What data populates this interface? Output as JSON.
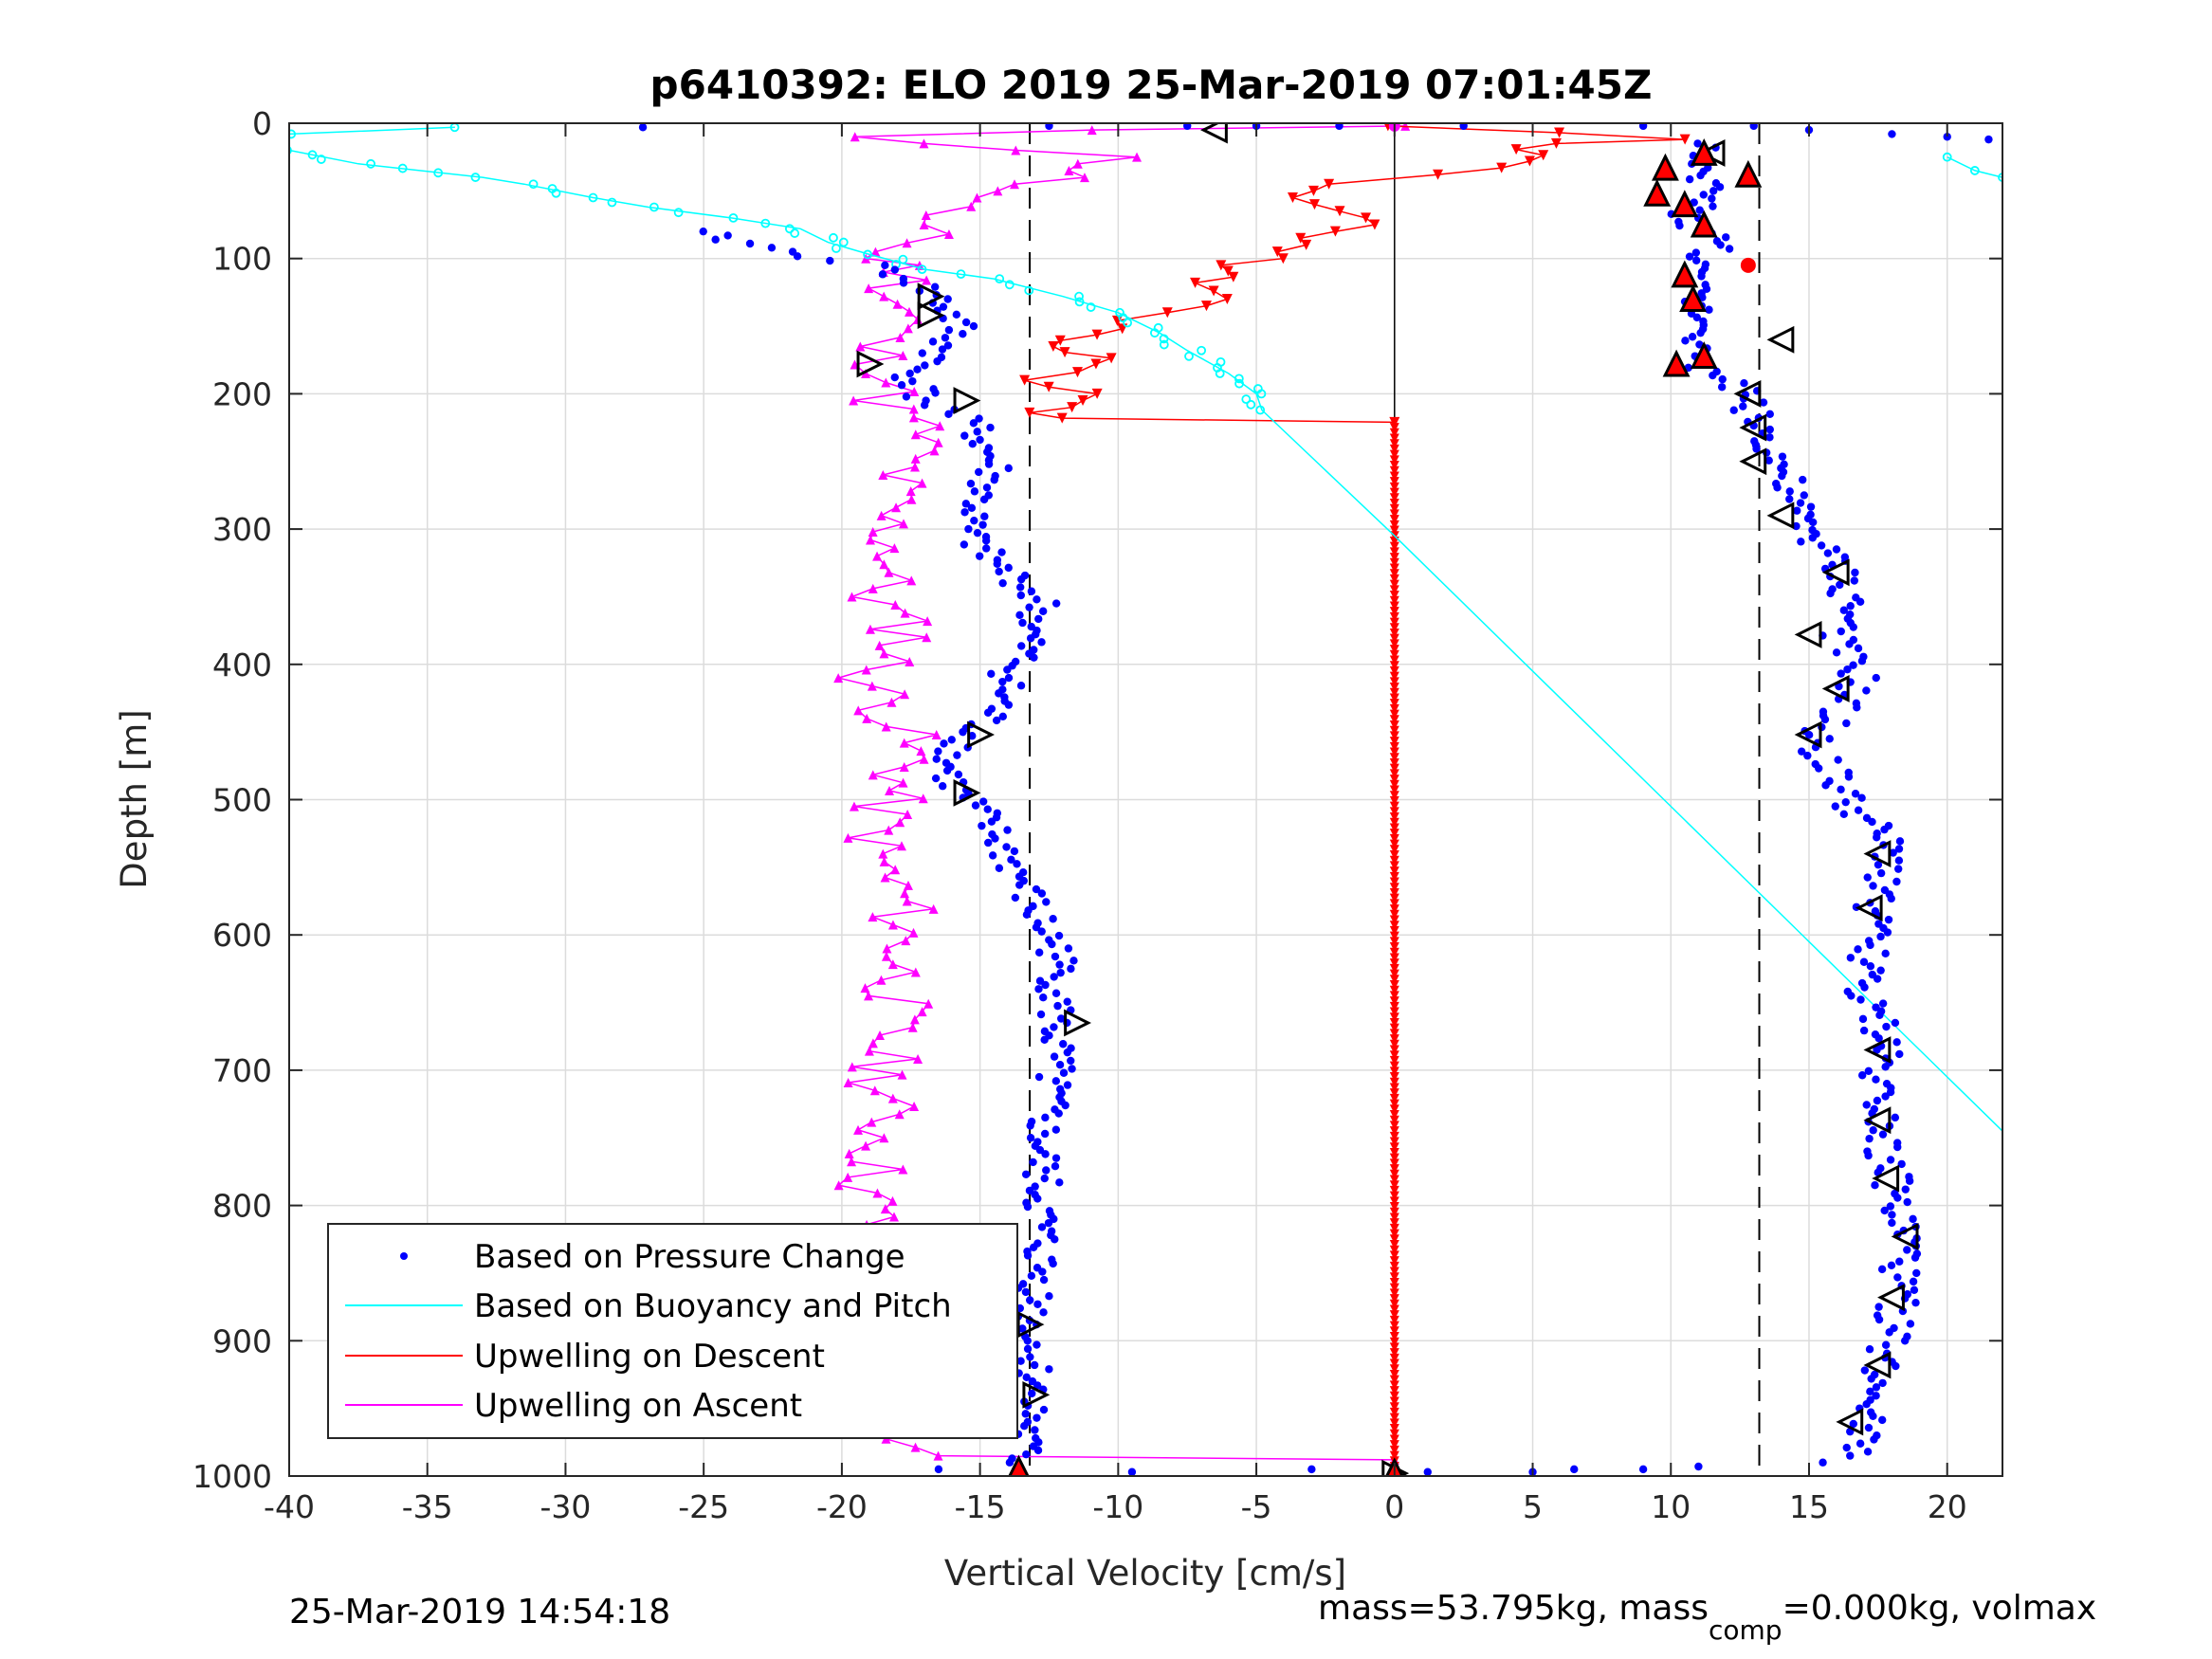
{
  "figure": {
    "title": "p6410392: ELO 2019 25-Mar-2019 07:01:45Z",
    "footer_left": "25-Mar-2019 14:54:18",
    "footer_right_prefix": "mass=53.795kg, mass",
    "footer_right_sub": "comp",
    "footer_right_suffix": "=0.000kg, volmax"
  },
  "chart_data": {
    "type": "scatter",
    "title": "p6410392: ELO 2019 25-Mar-2019 07:01:45Z",
    "xlabel": "Vertical Velocity [cm/s]",
    "ylabel": "Depth [m]",
    "xlim": [
      -40,
      22
    ],
    "ylim": [
      0,
      1000
    ],
    "y_reversed": true,
    "grid": true,
    "legend_position": "bottom-left",
    "xticks": [
      -40,
      -35,
      -30,
      -25,
      -20,
      -15,
      -10,
      -5,
      0,
      5,
      10,
      15,
      20
    ],
    "yticks": [
      0,
      100,
      200,
      300,
      400,
      500,
      600,
      700,
      800,
      900,
      1000
    ],
    "reference_lines": {
      "zero_x": 0,
      "dashed_x": [
        -13.2,
        13.2
      ]
    },
    "series": [
      {
        "name": "Based on Pressure Change",
        "color": "#0000ff",
        "style": "dots",
        "descent_profile": [
          [
            -25.5,
            80
          ],
          [
            -22,
            95
          ],
          [
            -19,
            105
          ],
          [
            -17.5,
            115
          ],
          [
            -16.5,
            130
          ],
          [
            -15.8,
            150
          ],
          [
            -16.5,
            170
          ],
          [
            -17.5,
            185
          ],
          [
            -17,
            205
          ],
          [
            -16,
            215
          ],
          [
            -15.2,
            225
          ],
          [
            -14.8,
            240
          ],
          [
            -14.5,
            255
          ],
          [
            -15,
            275
          ],
          [
            -15.5,
            300
          ],
          [
            -14.8,
            320
          ],
          [
            -13.5,
            340
          ],
          [
            -12.8,
            355
          ],
          [
            -13.2,
            375
          ],
          [
            -13.5,
            395
          ],
          [
            -14,
            410
          ],
          [
            -14.3,
            430
          ],
          [
            -15.2,
            450
          ],
          [
            -16.2,
            470
          ],
          [
            -16,
            490
          ],
          [
            -15,
            510
          ],
          [
            -14.2,
            535
          ],
          [
            -13.5,
            560
          ],
          [
            -13,
            585
          ],
          [
            -12.2,
            610
          ],
          [
            -12.2,
            640
          ],
          [
            -12.3,
            665
          ],
          [
            -12.3,
            690
          ],
          [
            -12.5,
            720
          ],
          [
            -12.8,
            750
          ],
          [
            -12.8,
            780
          ],
          [
            -12.8,
            810
          ],
          [
            -12.8,
            840
          ],
          [
            -13,
            870
          ],
          [
            -13.2,
            900
          ],
          [
            -13,
            930
          ],
          [
            -13.2,
            960
          ],
          [
            -13.6,
            990
          ]
        ],
        "ascent_profile": [
          [
            11.5,
            15
          ],
          [
            10.5,
            30
          ],
          [
            11.5,
            50
          ],
          [
            10.5,
            70
          ],
          [
            11.8,
            90
          ],
          [
            10.5,
            110
          ],
          [
            11,
            135
          ],
          [
            11.5,
            155
          ],
          [
            10.5,
            175
          ],
          [
            12.5,
            195
          ],
          [
            13,
            215
          ],
          [
            13.5,
            235
          ],
          [
            14,
            255
          ],
          [
            14.2,
            275
          ],
          [
            14.8,
            295
          ],
          [
            15.5,
            315
          ],
          [
            16.2,
            335
          ],
          [
            16.5,
            360
          ],
          [
            16,
            385
          ],
          [
            16.8,
            410
          ],
          [
            16,
            435
          ],
          [
            15.2,
            455
          ],
          [
            15.8,
            480
          ],
          [
            16.5,
            505
          ],
          [
            17.5,
            525
          ],
          [
            18,
            545
          ],
          [
            17.5,
            570
          ],
          [
            17.2,
            595
          ],
          [
            17.2,
            620
          ],
          [
            16.8,
            645
          ],
          [
            17.5,
            665
          ],
          [
            17.8,
            685
          ],
          [
            17.5,
            710
          ],
          [
            17.8,
            735
          ],
          [
            17.8,
            760
          ],
          [
            18,
            785
          ],
          [
            18.2,
            810
          ],
          [
            18.6,
            830
          ],
          [
            18.2,
            850
          ],
          [
            18.2,
            875
          ],
          [
            17.9,
            900
          ],
          [
            17.5,
            925
          ],
          [
            17.5,
            950
          ],
          [
            17,
            970
          ],
          [
            17,
            985
          ]
        ],
        "outliers": [
          [
            -27.2,
            3
          ],
          [
            -12.5,
            2
          ],
          [
            -7.5,
            2
          ],
          [
            -5,
            2
          ],
          [
            -2,
            2
          ],
          [
            2.5,
            2
          ],
          [
            9,
            2
          ],
          [
            13,
            2
          ],
          [
            15,
            5
          ],
          [
            18,
            8
          ],
          [
            20,
            10
          ],
          [
            21.5,
            12
          ],
          [
            -16.5,
            995
          ],
          [
            -9.5,
            997
          ],
          [
            -3,
            995
          ],
          [
            1.2,
            997
          ],
          [
            5,
            997
          ],
          [
            6.5,
            995
          ],
          [
            9,
            995
          ],
          [
            11,
            993
          ],
          [
            15.5,
            990
          ]
        ]
      },
      {
        "name": "Based on Buoyancy and Pitch",
        "color": "#00ffff",
        "style": "line-with-circles",
        "points": [
          [
            -34,
            3
          ],
          [
            -40,
            8
          ],
          [
            -40,
            20
          ],
          [
            -37.5,
            30
          ],
          [
            -33,
            40
          ],
          [
            -31.5,
            45
          ],
          [
            -29,
            55
          ],
          [
            -27,
            62
          ],
          [
            -24,
            70
          ],
          [
            -21.5,
            78
          ],
          [
            -20.5,
            88
          ],
          [
            -19,
            97
          ],
          [
            -17,
            108
          ],
          [
            -14.5,
            115
          ],
          [
            -12,
            128
          ],
          [
            -10,
            140
          ],
          [
            -8.5,
            155
          ],
          [
            -7.5,
            168
          ],
          [
            -6,
            185
          ],
          [
            -5,
            200
          ],
          [
            -4.8,
            212
          ],
          [
            0,
            305
          ],
          [
            22,
            745
          ]
        ],
        "near_surface_right": [
          [
            20,
            25
          ],
          [
            21,
            35
          ],
          [
            22,
            40
          ]
        ]
      },
      {
        "name": "Upwelling on Descent",
        "color": "#ff0000",
        "style": "line-with-down-triangles",
        "points": [
          [
            0,
            2
          ],
          [
            10.3,
            12
          ],
          [
            5,
            15
          ],
          [
            4.5,
            28
          ],
          [
            2,
            38
          ],
          [
            -1.5,
            45
          ],
          [
            -3,
            55
          ],
          [
            -2,
            65
          ],
          [
            -1.5,
            75
          ],
          [
            -3,
            90
          ],
          [
            -5.5,
            105
          ],
          [
            -7,
            118
          ],
          [
            -6,
            130
          ],
          [
            -8.5,
            140
          ],
          [
            -10,
            152
          ],
          [
            -12,
            165
          ],
          [
            -10.5,
            178
          ],
          [
            -12.5,
            190
          ],
          [
            -11,
            200
          ],
          [
            -12.5,
            210
          ],
          [
            -12.2,
            218
          ],
          [
            0,
            221
          ],
          [
            0,
            1000
          ]
        ],
        "marker_zero_column_from": 221
      },
      {
        "name": "Upwelling on Ascent",
        "color": "#ff00ff",
        "style": "line-with-up-triangles",
        "points": [
          [
            0,
            2
          ],
          [
            -12,
            5
          ],
          [
            -19,
            10
          ],
          [
            -10,
            25
          ],
          [
            -12,
            40
          ],
          [
            -16,
            55
          ],
          [
            -17,
            68
          ],
          [
            -16,
            82
          ],
          [
            -19,
            95
          ],
          [
            -17.5,
            110
          ],
          [
            -18,
            128
          ],
          [
            -17.5,
            145
          ],
          [
            -19,
            165
          ],
          [
            -18,
            185
          ],
          [
            -18.5,
            205
          ],
          [
            -17,
            230
          ],
          [
            -18,
            260
          ],
          [
            -18.5,
            290
          ],
          [
            -18,
            320
          ],
          [
            -18.8,
            350
          ],
          [
            -17.5,
            380
          ],
          [
            -19,
            410
          ],
          [
            -18,
            440
          ],
          [
            -17.5,
            470
          ],
          [
            -18.5,
            505
          ],
          [
            -18.8,
            540
          ],
          [
            -17.8,
            575
          ],
          [
            -17.8,
            610
          ],
          [
            -18,
            645
          ],
          [
            -18.5,
            680
          ],
          [
            -18.5,
            715
          ],
          [
            -18.5,
            750
          ],
          [
            -19,
            785
          ],
          [
            -18.8,
            820
          ],
          [
            -19,
            855
          ],
          [
            -18.8,
            890
          ],
          [
            -19,
            925
          ],
          [
            -18,
            960
          ],
          [
            -17.2,
            985
          ],
          [
            0,
            988
          ]
        ]
      }
    ],
    "extra_markers": {
      "open_triangles": [
        [
          -6.5,
          5
        ],
        [
          -16.8,
          128
        ],
        [
          -16.8,
          142
        ],
        [
          -19,
          178
        ],
        [
          -15.5,
          205
        ],
        [
          -15,
          452
        ],
        [
          -15.5,
          495
        ],
        [
          -11.5,
          665
        ],
        [
          -13.2,
          888
        ],
        [
          -13,
          940
        ],
        [
          11.5,
          22
        ],
        [
          14,
          160
        ],
        [
          12.8,
          200
        ],
        [
          13,
          225
        ],
        [
          13,
          250
        ],
        [
          14,
          290
        ],
        [
          16,
          332
        ],
        [
          15,
          378
        ],
        [
          16,
          418
        ],
        [
          15,
          452
        ],
        [
          17.5,
          540
        ],
        [
          17.2,
          580
        ],
        [
          17.5,
          685
        ],
        [
          17.5,
          737
        ],
        [
          17.8,
          780
        ],
        [
          18.5,
          823
        ],
        [
          18,
          868
        ],
        [
          17.5,
          918
        ],
        [
          16.5,
          960
        ],
        [
          0,
          998
        ]
      ],
      "red_filled_triangles": [
        [
          11.2,
          22
        ],
        [
          9.8,
          33
        ],
        [
          12.8,
          38
        ],
        [
          9.5,
          52
        ],
        [
          10.5,
          60
        ],
        [
          11.2,
          75
        ],
        [
          10.5,
          112
        ],
        [
          10.8,
          130
        ],
        [
          10.2,
          178
        ],
        [
          11.2,
          172
        ],
        [
          -13.6,
          995
        ],
        [
          0,
          997
        ]
      ],
      "red_dot": [
        12.8,
        105
      ],
      "magenta_dot": [
        0,
        2
      ]
    }
  }
}
